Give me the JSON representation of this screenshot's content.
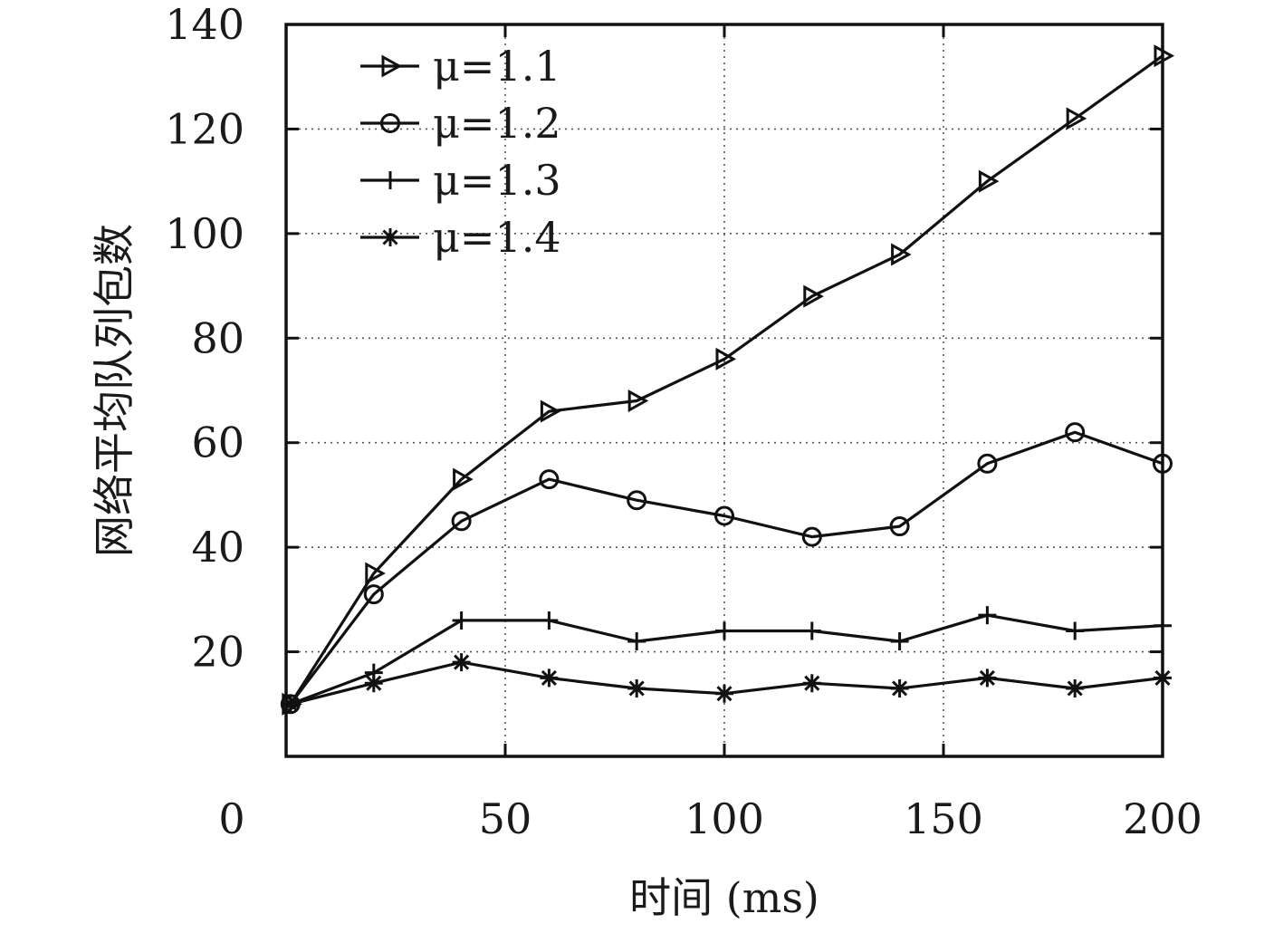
{
  "chart_data": {
    "type": "line",
    "title": "",
    "xlabel": "时间 (ms)",
    "ylabel": "网络平均队列包数",
    "xlim": [
      0,
      200
    ],
    "ylim": [
      0,
      140
    ],
    "x_ticks": [
      0,
      50,
      100,
      150,
      200
    ],
    "y_ticks": [
      20,
      40,
      60,
      80,
      100,
      120,
      140
    ],
    "grid": true,
    "legend_position": "top-left",
    "x": [
      1,
      20,
      40,
      60,
      80,
      100,
      120,
      140,
      160,
      180,
      200
    ],
    "series": [
      {
        "name": "μ=1.1",
        "marker": "triangle-right",
        "values": [
          10,
          35,
          53,
          66,
          68,
          76,
          88,
          96,
          110,
          122,
          134
        ]
      },
      {
        "name": "μ=1.2",
        "marker": "circle",
        "values": [
          10,
          31,
          45,
          53,
          49,
          46,
          42,
          44,
          56,
          62,
          56
        ]
      },
      {
        "name": "μ=1.3",
        "marker": "plus",
        "values": [
          10,
          16,
          26,
          26,
          22,
          24,
          24,
          22,
          27,
          24,
          25
        ]
      },
      {
        "name": "μ=1.4",
        "marker": "asterisk",
        "values": [
          10,
          14,
          18,
          15,
          13,
          12,
          14,
          13,
          15,
          13,
          15
        ]
      }
    ]
  }
}
